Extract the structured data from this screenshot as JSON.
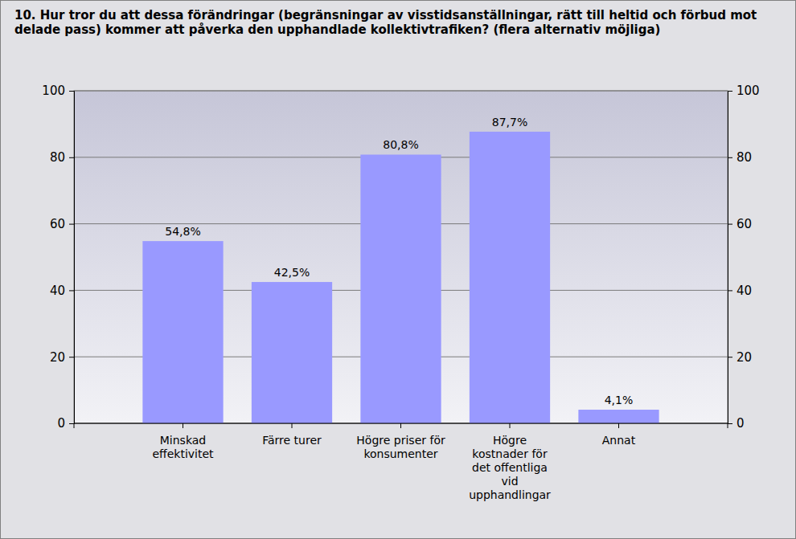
{
  "chart_data": {
    "type": "bar",
    "title": "10. Hur tror du att dessa förändringar (begränsningar av visstidsanställningar, rätt till heltid och förbud mot delade pass) kommer att påverka den upphandlade kollektivtrafiken? (flera alternativ möjliga)",
    "categories": [
      "Minskad effektivitet",
      "Färre turer",
      "Högre priser för konsumenter",
      "Högre kostnader för det offentliga vid upphandlingar",
      "Annat"
    ],
    "values": [
      54.8,
      42.5,
      80.8,
      87.7,
      4.1
    ],
    "value_labels": [
      "54,8%",
      "42,5%",
      "80,8%",
      "87,7%",
      "4,1%"
    ],
    "data_labels": true,
    "color": "#9999ff",
    "ylim": [
      0,
      100
    ],
    "yticks": [
      0,
      20,
      40,
      60,
      80,
      100
    ],
    "y2lim": [
      0,
      100
    ],
    "y2ticks": [
      0,
      20,
      40,
      60,
      80,
      100
    ],
    "grid": true
  }
}
